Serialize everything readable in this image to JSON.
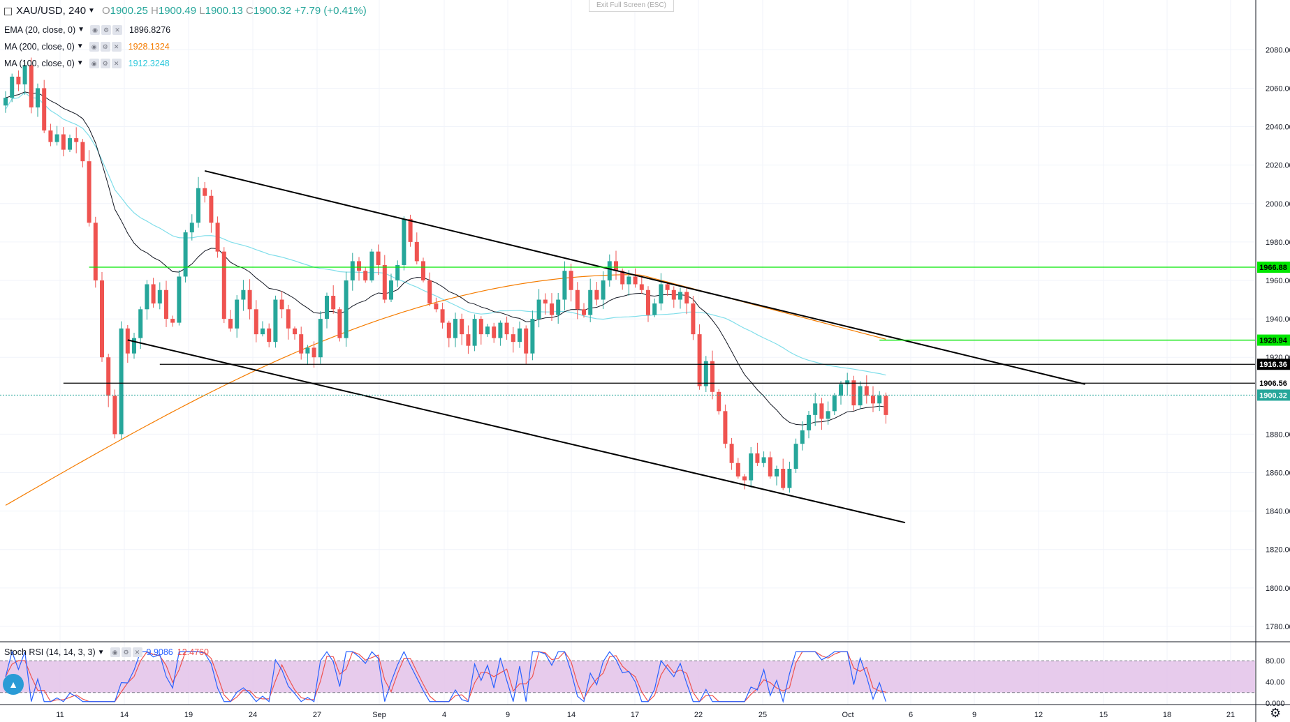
{
  "legend": {
    "symbol": "XAU/USD, 240",
    "open_label": "O",
    "open": "1900.25",
    "high_label": "H",
    "high": "1900.49",
    "low_label": "L",
    "low": "1900.13",
    "close_label": "C",
    "close": "1900.32",
    "change": "+7.79 (+0.41%)",
    "indicators": [
      {
        "label": "EMA (20, close, 0)",
        "value": "1896.8276",
        "color": "#131722"
      },
      {
        "label": "MA (200, close, 0)",
        "value": "1928.1324",
        "color": "#f57c00"
      },
      {
        "label": "MA (100, close, 0)",
        "value": "1912.3248",
        "color": "#26c6da"
      }
    ]
  },
  "exit_fullscreen": "Exit Full Screen (ESC)",
  "stoch": {
    "label": "Stoch RSI (14, 14, 3, 3)",
    "k_value": "9.9086",
    "d_value": "12.4760",
    "k_color": "#2962ff",
    "d_color": "#ef5350",
    "y_ticks": [
      "80.00",
      "40.00",
      "0.000"
    ]
  },
  "colors": {
    "up": "#26a69a",
    "down": "#ef5350",
    "ema20": "#131722",
    "ma200": "#f57c00",
    "ma100": "#80deea",
    "channel": "#000000",
    "green_level": "#00e600",
    "stoch_band": "#e1bee7"
  },
  "chart_data": {
    "type": "candlestick",
    "title": "XAU/USD, 240",
    "x_tick_labels": [
      "11",
      "14",
      "19",
      "24",
      "27",
      "Sep",
      "4",
      "9",
      "14",
      "17",
      "22",
      "25",
      "Oct",
      "6",
      "9",
      "12",
      "15",
      "18",
      "21"
    ],
    "y_tick_labels": [
      "2080.00",
      "2060.00",
      "2040.00",
      "2020.00",
      "2000.00",
      "1980.00",
      "1960.00",
      "1940.00",
      "1920.00",
      "1880.00",
      "1860.00",
      "1840.00",
      "1820.00",
      "1800.00",
      "1780.00"
    ],
    "ylim": [
      1772,
      2095
    ],
    "price_labels": [
      {
        "text": "1966.88",
        "value": 1966.88,
        "bg": "#00e600",
        "color": "#000000"
      },
      {
        "text": "1928.94",
        "value": 1928.94,
        "bg": "#00e600",
        "color": "#000000"
      },
      {
        "text": "1916.36",
        "value": 1916.36,
        "bg": "#000000",
        "color": "#ffffff"
      },
      {
        "text": "1906.56",
        "value": 1906.56,
        "bg": "#ffffff",
        "color": "#000000"
      },
      {
        "text": "1900.32",
        "value": 1900.32,
        "bg": "#26a69a",
        "color": "#ffffff"
      }
    ],
    "close_path": [
      2055,
      2066,
      2062,
      2072,
      2050,
      2060,
      2038,
      2032,
      2036,
      2028,
      2034,
      2032,
      2022,
      1990,
      1960,
      1920,
      1900,
      1880,
      1935,
      1922,
      1930,
      1945,
      1958,
      1948,
      1955,
      1940,
      1938,
      1962,
      1985,
      1990,
      2008,
      2004,
      1990,
      1975,
      1940,
      1935,
      1950,
      1955,
      1945,
      1932,
      1935,
      1928,
      1950,
      1945,
      1935,
      1932,
      1922,
      1925,
      1920,
      1940,
      1952,
      1945,
      1930,
      1960,
      1970,
      1965,
      1960,
      1975,
      1968,
      1950,
      1960,
      1968,
      1992,
      1980,
      1970,
      1960,
      1948,
      1945,
      1938,
      1930,
      1940,
      1932,
      1926,
      1940,
      1932,
      1936,
      1930,
      1938,
      1932,
      1928,
      1935,
      1922,
      1940,
      1950,
      1948,
      1942,
      1950,
      1965,
      1955,
      1945,
      1942,
      1955,
      1950,
      1960,
      1970,
      1965,
      1958,
      1962,
      1958,
      1955,
      1942,
      1948,
      1958,
      1955,
      1950,
      1954,
      1948,
      1932,
      1905,
      1918,
      1902,
      1892,
      1875,
      1865,
      1858,
      1856,
      1870,
      1865,
      1868,
      1858,
      1862,
      1852,
      1862,
      1875,
      1882,
      1890,
      1896,
      1888,
      1892,
      1900,
      1906,
      1908,
      1895,
      1905,
      1900,
      1896,
      1900,
      1890
    ],
    "channel_lines": [
      {
        "x1_index": 31,
        "y1": 2017,
        "x2_index": 168,
        "y2": 1906
      },
      {
        "x1_index": 19,
        "y1": 1929,
        "x2_index": 140,
        "y2": 1834
      }
    ],
    "horizontal_levels": [
      {
        "value": 1966.88,
        "x_start_index": 13,
        "color": "#00e600"
      },
      {
        "value": 1928.94,
        "x_start_index": 136,
        "color": "#00e600"
      },
      {
        "value": 1916.36,
        "x_start_index": 24,
        "color": "#000000"
      },
      {
        "value": 1906.56,
        "x_start_index": 9,
        "color": "#000000"
      }
    ]
  }
}
